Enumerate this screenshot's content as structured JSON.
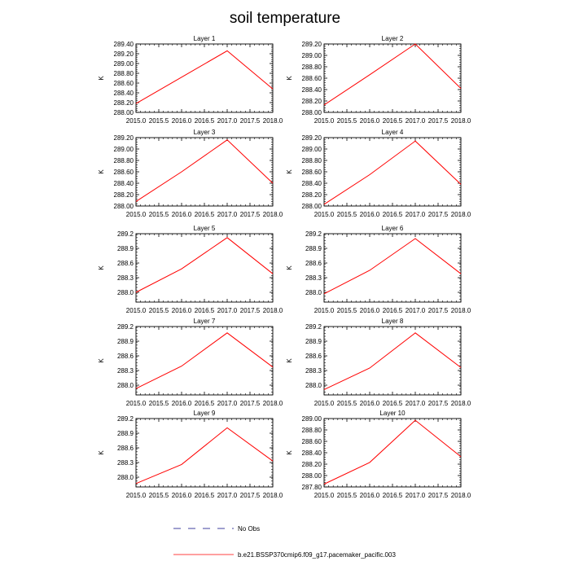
{
  "figure_title": "soil temperature",
  "legend": [
    {
      "label": "No Obs",
      "color": "#000080",
      "style": "dashed"
    },
    {
      "label": "b.e21.BSSP370cmip6.f09_g17.pacemaker_pacific.003",
      "color": "#ff0000",
      "style": "solid"
    }
  ],
  "chart_data": [
    {
      "type": "line",
      "title": "Layer 1",
      "ylabel": "K",
      "x": [
        2015,
        2016,
        2017,
        2018
      ],
      "series": [
        {
          "name": "b.e21.BSSP370cmip6.f09_g17.pacemaker_pacific.003",
          "values": [
            288.18,
            288.72,
            289.26,
            288.48
          ]
        }
      ],
      "xlim": [
        2015,
        2018
      ],
      "ylim": [
        288.0,
        289.4
      ],
      "xticks": [
        "2015.0",
        "2015.5",
        "2016.0",
        "2016.5",
        "2017.0",
        "2017.5",
        "2018.0"
      ],
      "yticks": [
        "288.00",
        "288.20",
        "288.40",
        "288.60",
        "288.80",
        "289.00",
        "289.20",
        "289.40"
      ]
    },
    {
      "type": "line",
      "title": "Layer 2",
      "ylabel": "K",
      "x": [
        2015,
        2016,
        2017,
        2018
      ],
      "series": [
        {
          "name": "b.e21.BSSP370cmip6.f09_g17.pacemaker_pacific.003",
          "values": [
            288.13,
            288.66,
            289.2,
            288.42
          ]
        }
      ],
      "xlim": [
        2015,
        2018
      ],
      "ylim": [
        288.0,
        289.2
      ],
      "xticks": [
        "2015.0",
        "2015.5",
        "2016.0",
        "2016.5",
        "2017.0",
        "2017.5",
        "2018.0"
      ],
      "yticks": [
        "288.00",
        "288.20",
        "288.40",
        "288.60",
        "288.80",
        "289.00",
        "289.20"
      ]
    },
    {
      "type": "line",
      "title": "Layer 3",
      "ylabel": "K",
      "x": [
        2015,
        2016,
        2017,
        2018
      ],
      "series": [
        {
          "name": "b.e21.BSSP370cmip6.f09_g17.pacemaker_pacific.003",
          "values": [
            288.08,
            288.6,
            289.16,
            288.4
          ]
        }
      ],
      "xlim": [
        2015,
        2018
      ],
      "ylim": [
        288.0,
        289.2
      ],
      "xticks": [
        "2015.0",
        "2015.5",
        "2016.0",
        "2016.5",
        "2017.0",
        "2017.5",
        "2018.0"
      ],
      "yticks": [
        "288.00",
        "288.20",
        "288.40",
        "288.60",
        "288.80",
        "289.00",
        "289.20"
      ]
    },
    {
      "type": "line",
      "title": "Layer 4",
      "ylabel": "K",
      "x": [
        2015,
        2016,
        2017,
        2018
      ],
      "series": [
        {
          "name": "b.e21.BSSP370cmip6.f09_g17.pacemaker_pacific.003",
          "values": [
            288.03,
            288.55,
            289.14,
            288.38
          ]
        }
      ],
      "xlim": [
        2015,
        2018
      ],
      "ylim": [
        288.0,
        289.2
      ],
      "xticks": [
        "2015.0",
        "2015.5",
        "2016.0",
        "2016.5",
        "2017.0",
        "2017.5",
        "2018.0"
      ],
      "yticks": [
        "288.00",
        "288.20",
        "288.40",
        "288.60",
        "288.80",
        "289.00",
        "289.20"
      ]
    },
    {
      "type": "line",
      "title": "Layer 5",
      "ylabel": "K",
      "x": [
        2015,
        2016,
        2017,
        2018
      ],
      "series": [
        {
          "name": "b.e21.BSSP370cmip6.f09_g17.pacemaker_pacific.003",
          "values": [
            288.0,
            288.48,
            289.12,
            288.38
          ]
        }
      ],
      "xlim": [
        2015,
        2018
      ],
      "ylim": [
        287.8,
        289.2
      ],
      "xticks": [
        "2015.0",
        "2015.5",
        "2016.0",
        "2016.5",
        "2017.0",
        "2017.5",
        "2018.0"
      ],
      "yticks": [
        "288.0",
        "288.3",
        "288.6",
        "288.9",
        "289.2"
      ]
    },
    {
      "type": "line",
      "title": "Layer 6",
      "ylabel": "K",
      "x": [
        2015,
        2016,
        2017,
        2018
      ],
      "series": [
        {
          "name": "b.e21.BSSP370cmip6.f09_g17.pacemaker_pacific.003",
          "values": [
            287.97,
            288.45,
            289.1,
            288.38
          ]
        }
      ],
      "xlim": [
        2015,
        2018
      ],
      "ylim": [
        287.8,
        289.2
      ],
      "xticks": [
        "2015.0",
        "2015.5",
        "2016.0",
        "2016.5",
        "2017.0",
        "2017.5",
        "2018.0"
      ],
      "yticks": [
        "288.0",
        "288.3",
        "288.6",
        "288.9",
        "289.2"
      ]
    },
    {
      "type": "line",
      "title": "Layer 7",
      "ylabel": "K",
      "x": [
        2015,
        2016,
        2017,
        2018
      ],
      "series": [
        {
          "name": "b.e21.BSSP370cmip6.f09_g17.pacemaker_pacific.003",
          "values": [
            287.93,
            288.39,
            289.07,
            288.37
          ]
        }
      ],
      "xlim": [
        2015,
        2018
      ],
      "ylim": [
        287.8,
        289.2
      ],
      "xticks": [
        "2015.0",
        "2015.5",
        "2016.0",
        "2016.5",
        "2017.0",
        "2017.5",
        "2018.0"
      ],
      "yticks": [
        "288.0",
        "288.3",
        "288.6",
        "288.9",
        "289.2"
      ]
    },
    {
      "type": "line",
      "title": "Layer 8",
      "ylabel": "K",
      "x": [
        2015,
        2016,
        2017,
        2018
      ],
      "series": [
        {
          "name": "b.e21.BSSP370cmip6.f09_g17.pacemaker_pacific.003",
          "values": [
            287.91,
            288.35,
            289.07,
            288.36
          ]
        }
      ],
      "xlim": [
        2015,
        2018
      ],
      "ylim": [
        287.8,
        289.2
      ],
      "xticks": [
        "2015.0",
        "2015.5",
        "2016.0",
        "2016.5",
        "2017.0",
        "2017.5",
        "2018.0"
      ],
      "yticks": [
        "288.0",
        "288.3",
        "288.6",
        "288.9",
        "289.2"
      ]
    },
    {
      "type": "line",
      "title": "Layer 9",
      "ylabel": "K",
      "x": [
        2015,
        2016,
        2017,
        2018
      ],
      "series": [
        {
          "name": "b.e21.BSSP370cmip6.f09_g17.pacemaker_pacific.003",
          "values": [
            287.87,
            288.26,
            289.01,
            288.33
          ]
        }
      ],
      "xlim": [
        2015,
        2018
      ],
      "ylim": [
        287.8,
        289.2
      ],
      "xticks": [
        "2015.0",
        "2015.5",
        "2016.0",
        "2016.5",
        "2017.0",
        "2017.5",
        "2018.0"
      ],
      "yticks": [
        "288.0",
        "288.3",
        "288.6",
        "288.9",
        "289.2"
      ]
    },
    {
      "type": "line",
      "title": "Layer 10",
      "ylabel": "K",
      "x": [
        2015,
        2016,
        2017,
        2018
      ],
      "series": [
        {
          "name": "b.e21.BSSP370cmip6.f09_g17.pacemaker_pacific.003",
          "values": [
            287.85,
            288.23,
            288.97,
            288.33
          ]
        }
      ],
      "xlim": [
        2015,
        2018
      ],
      "ylim": [
        287.8,
        289.0
      ],
      "xticks": [
        "2015.0",
        "2015.5",
        "2016.0",
        "2016.5",
        "2017.0",
        "2017.5",
        "2018.0"
      ],
      "yticks": [
        "287.80",
        "288.00",
        "288.20",
        "288.40",
        "288.60",
        "288.80",
        "289.00"
      ]
    }
  ]
}
